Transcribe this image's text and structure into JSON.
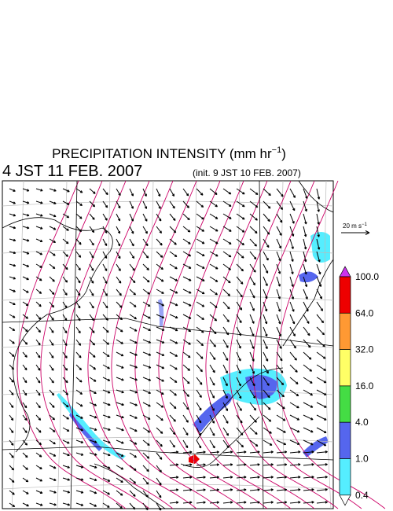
{
  "title": {
    "main": "PRECIPITATION INTENSITY (mm hr",
    "sup": "−1",
    "end": ")"
  },
  "time": "4 JST 11 FEB. 2007",
  "init": "(init. 9 JST 10 FEB. 2007)",
  "vector_reference": {
    "label": "20 m s",
    "sup": "−1"
  },
  "colorbar": {
    "labels": [
      "100.0",
      "64.0",
      "32.0",
      "16.0",
      "4.0",
      "1.0",
      "0.4"
    ],
    "colors": [
      "#cc33ee",
      "#ee0000",
      "#ff9933",
      "#ffff66",
      "#44dd44",
      "#5566ee",
      "#55eeff",
      "#ffffff"
    ]
  }
}
